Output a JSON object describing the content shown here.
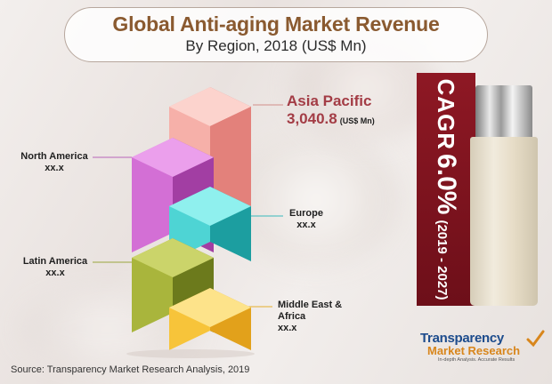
{
  "title": "Global Anti-aging Market Revenue",
  "subtitle": "By Region, 2018 (US$ Mn)",
  "chart_data": {
    "type": "bar",
    "style": "stacked 3D cubes",
    "categories": [
      "Asia Pacific",
      "North America",
      "Europe",
      "Latin America",
      "Middle East & Africa"
    ],
    "series": [
      {
        "values": [
          3040.8,
          null,
          null,
          null,
          null
        ]
      }
    ],
    "value_labels": [
      "3,040.8",
      "xx.x",
      "xx.x",
      "xx.x",
      "xx.x"
    ],
    "colors": [
      "#ec9a96",
      "#c864c8",
      "#38c1c4",
      "#8e9e2e",
      "#f3b928"
    ],
    "unit": "(US$ Mn)"
  },
  "cagr": {
    "label": "CAGR",
    "value": "6.0%",
    "period": "(2019 - 2027)"
  },
  "source": "Source: Transparency Market Research Analysis, 2019",
  "logo": {
    "line1": "Transparency",
    "line2": "Market Research",
    "tagline": "In-depth Analysis. Accurate Results"
  }
}
